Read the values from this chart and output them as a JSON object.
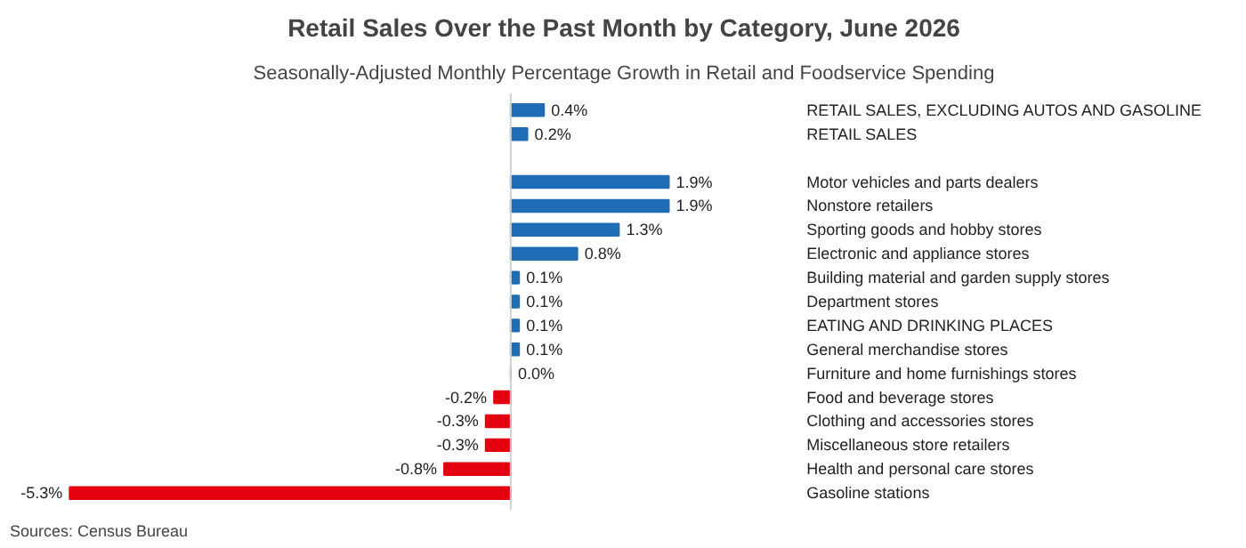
{
  "chart_data": {
    "type": "bar",
    "orientation": "horizontal",
    "title": "Retail Sales Over the Past Month by Category, June 2026",
    "subtitle": "Seasonally-Adjusted Monthly Percentage Growth in Retail and Foodservice Spending",
    "categories": [
      "RETAIL SALES, EXCLUDING AUTOS AND GASOLINE",
      "RETAIL SALES",
      null,
      "Motor vehicles and parts dealers",
      "Nonstore retailers",
      "Sporting goods and hobby stores",
      "Electronic and appliance stores",
      "Building material and garden supply stores",
      "Department stores",
      "EATING AND DRINKING PLACES",
      "General merchandise stores",
      "Furniture and home furnishings stores",
      "Food and beverage stores",
      "Clothing and accessories stores",
      "Miscellaneous store retailers",
      "Health and personal care stores",
      "Gasoline stations"
    ],
    "values": [
      0.4,
      0.2,
      null,
      1.9,
      1.9,
      1.3,
      0.8,
      0.1,
      0.1,
      0.1,
      0.1,
      0.0,
      -0.2,
      -0.3,
      -0.3,
      -0.8,
      -5.3
    ],
    "value_labels": [
      "0.4%",
      "0.2%",
      null,
      "1.9%",
      "1.9%",
      "1.3%",
      "0.8%",
      "0.1%",
      "0.1%",
      "0.1%",
      "0.1%",
      "0.0%",
      "-0.2%",
      "-0.3%",
      "-0.3%",
      "-0.8%",
      "-5.3%"
    ],
    "colors": [
      "#1f6db5",
      "#1f6db5",
      null,
      "#1f6db5",
      "#1f6db5",
      "#1f6db5",
      "#1f6db5",
      "#1f6db5",
      "#1f6db5",
      "#1f6db5",
      "#1f6db5",
      "#1f6db5",
      "#e3000f",
      "#e3000f",
      "#e3000f",
      "#e3000f",
      "#e3000f"
    ],
    "annotations": [
      "Sources: Census Bureau"
    ]
  }
}
